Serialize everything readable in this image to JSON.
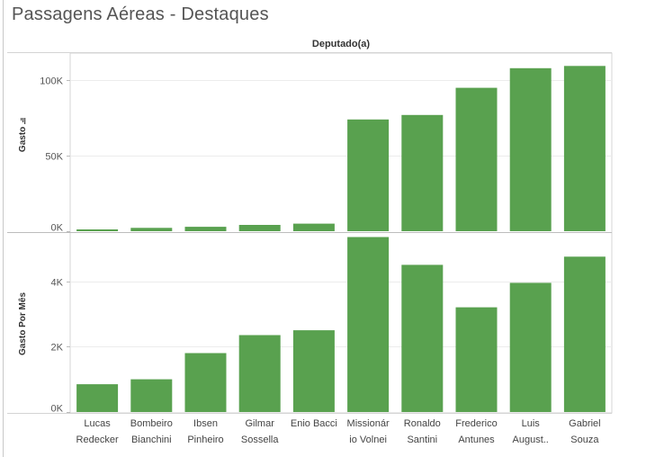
{
  "dashboard": {
    "title": "Passagens Aéreas - Destaques"
  },
  "chart_data": {
    "type": "bar",
    "column_header": "Deputado(a)",
    "categories": [
      [
        "Lucas",
        "Redecker"
      ],
      [
        "Bombeiro",
        "Bianchini"
      ],
      [
        "Ibsen",
        "Pinheiro"
      ],
      [
        "Gilmar",
        "Sossella"
      ],
      [
        "Enio Bacci"
      ],
      [
        "Missionár",
        "io Volnei"
      ],
      [
        "Ronaldo",
        "Santini"
      ],
      [
        "Frederico",
        "Antunes"
      ],
      [
        "Luis",
        "August.."
      ],
      [
        "Gabriel",
        "Souza"
      ]
    ],
    "panels": [
      {
        "measure": "Gasto",
        "sorted_indicator": true,
        "ylim": [
          0,
          118000
        ],
        "ticks": [
          {
            "value": 0,
            "label": "0K"
          },
          {
            "value": 50000,
            "label": "50K"
          },
          {
            "value": 100000,
            "label": "100K"
          }
        ],
        "values": [
          1200,
          2200,
          2900,
          4200,
          5000,
          74000,
          77000,
          95000,
          108000,
          109500
        ]
      },
      {
        "measure": "Gasto Por Mês",
        "sorted_indicator": false,
        "ylim": [
          0,
          5500
        ],
        "ticks": [
          {
            "value": 0,
            "label": "0K"
          },
          {
            "value": 2000,
            "label": "2K"
          },
          {
            "value": 4000,
            "label": "4K"
          }
        ],
        "values": [
          850,
          1000,
          1800,
          2350,
          2500,
          5350,
          4500,
          3200,
          3950,
          4750
        ]
      }
    ],
    "bar_color": "#59a14f",
    "grid": true,
    "legend": "none"
  }
}
